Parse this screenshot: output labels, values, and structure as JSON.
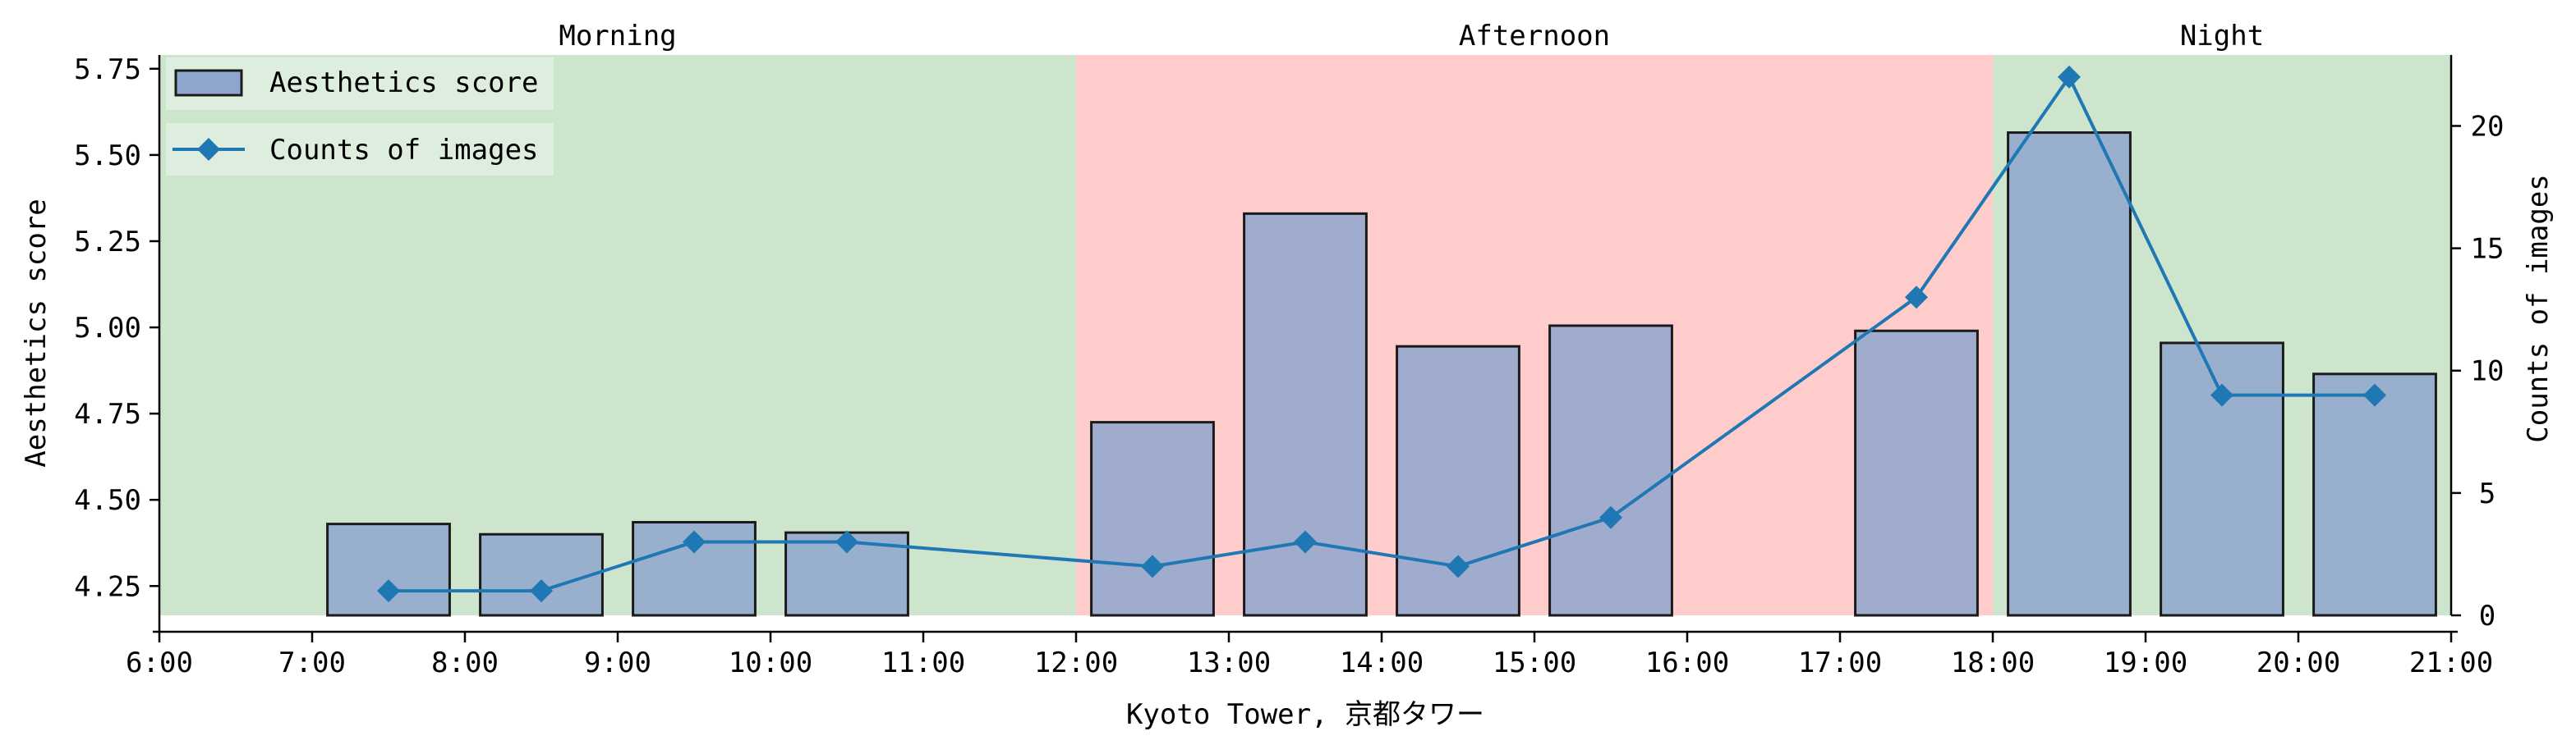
{
  "chart_data": {
    "type": "bar",
    "xlabel": "Kyoto Tower, 京都タワー",
    "ylabel": "Aesthetics score",
    "y2label": "Counts of images",
    "x_ticks": [
      "6:00",
      "7:00",
      "8:00",
      "9:00",
      "10:00",
      "11:00",
      "12:00",
      "13:00",
      "14:00",
      "15:00",
      "16:00",
      "17:00",
      "18:00",
      "19:00",
      "20:00",
      "21:00"
    ],
    "x_range": [
      6,
      21
    ],
    "ylim": [
      4.165,
      5.79
    ],
    "y_ticks": [
      "4.25",
      "4.50",
      "4.75",
      "5.00",
      "5.25",
      "5.50",
      "5.75"
    ],
    "y2lim": [
      0,
      22.9
    ],
    "y2_ticks": [
      "0",
      "5",
      "10",
      "15",
      "20"
    ],
    "grid": false,
    "legend_position": "top-left",
    "periods": [
      {
        "label": "Morning",
        "start": 6,
        "end": 12,
        "color": "#cde5cd"
      },
      {
        "label": "Afternoon",
        "start": 12,
        "end": 18,
        "color": "#ffcccc"
      },
      {
        "label": "Night",
        "start": 18,
        "end": 21,
        "color": "#cde5cd"
      }
    ],
    "series": [
      {
        "name": "Aesthetics score",
        "kind": "bar",
        "axis": "left",
        "color": "#8ea6ce",
        "x": [
          7.5,
          8.5,
          9.5,
          10.5,
          12.5,
          13.5,
          14.5,
          15.5,
          17.5,
          18.5,
          19.5,
          20.5
        ],
        "values": [
          4.43,
          4.4,
          4.435,
          4.405,
          4.725,
          5.33,
          4.945,
          5.005,
          4.99,
          5.565,
          4.955,
          4.865
        ]
      },
      {
        "name": "Counts of images",
        "kind": "line",
        "axis": "right",
        "color": "#1f77b4",
        "marker": "diamond",
        "x": [
          7.5,
          8.5,
          9.5,
          10.5,
          12.5,
          13.5,
          14.5,
          15.5,
          17.5,
          18.5,
          19.5,
          20.5
        ],
        "values": [
          1,
          1,
          3,
          3,
          2,
          3,
          2,
          4,
          13,
          22,
          9,
          9
        ]
      }
    ]
  }
}
